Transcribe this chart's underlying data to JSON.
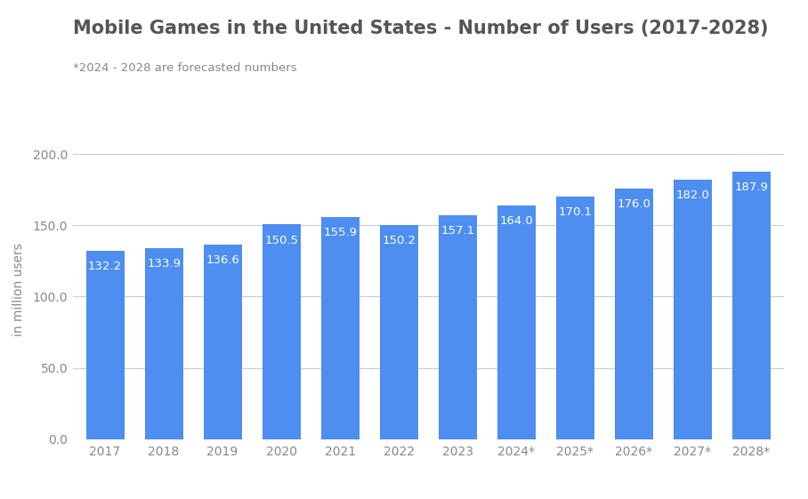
{
  "title": "Mobile Games in the United States - Number of Users (2017-2028)",
  "subtitle": "*2024 - 2028 are forecasted numbers",
  "ylabel": "in million users",
  "categories": [
    "2017",
    "2018",
    "2019",
    "2020",
    "2021",
    "2022",
    "2023",
    "2024*",
    "2025*",
    "2026*",
    "2027*",
    "2028*"
  ],
  "values": [
    132.2,
    133.9,
    136.6,
    150.5,
    155.9,
    150.2,
    157.1,
    164.0,
    170.1,
    176.0,
    182.0,
    187.9
  ],
  "bar_color": "#4d8ef0",
  "background_color": "#ffffff",
  "ylim": [
    0,
    210
  ],
  "yticks": [
    0.0,
    50.0,
    100.0,
    150.0,
    200.0
  ],
  "title_fontsize": 15,
  "subtitle_fontsize": 9.5,
  "ylabel_fontsize": 10,
  "bar_label_fontsize": 9.5,
  "bar_label_color": "#ffffff",
  "grid_color": "#cccccc",
  "title_color": "#555555",
  "subtitle_color": "#888888",
  "tick_color": "#888888",
  "tick_fontsize": 10
}
